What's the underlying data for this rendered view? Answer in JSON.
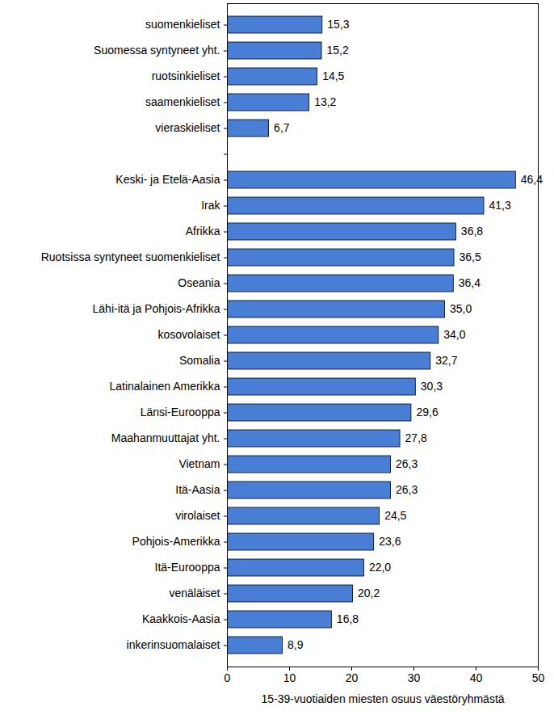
{
  "chart_data": {
    "type": "bar",
    "orientation": "horizontal",
    "x_label": "15-39-vuotiaiden miesten osuus väestöryhmästä",
    "categories": [
      "suomenkieliset",
      "Suomessa syntyneet yht.",
      "ruotsinkieliset",
      "saamenkieliset",
      "vieraskieliset",
      null,
      "Keski- ja Etelä-Aasia",
      "Irak",
      "Afrikka",
      "Ruotsissa syntyneet suomenkieliset",
      "Oseania",
      "Lähi-itä ja Pohjois-Afrikka",
      "kosovolaiset",
      "Somalia",
      "Latinalainen Amerikka",
      "Länsi-Eurooppa",
      "Maahanmuuttajat yht.",
      "Vietnam",
      "Itä-Aasia",
      "virolaiset",
      "Pohjois-Amerikka",
      "Itä-Eurooppa",
      "venäläiset",
      "Kaakkois-Aasia",
      "inkerinsuomalaiset"
    ],
    "values": [
      15.3,
      15.2,
      14.5,
      13.2,
      6.7,
      null,
      46.4,
      41.3,
      36.8,
      36.5,
      36.4,
      35.0,
      34.0,
      32.7,
      30.3,
      29.6,
      27.8,
      26.3,
      26.3,
      24.5,
      23.6,
      22.0,
      20.2,
      16.8,
      8.9
    ],
    "value_labels": [
      "15,3",
      "15,2",
      "14,5",
      "13,2",
      "6,7",
      null,
      "46,4",
      "41,3",
      "36,8",
      "36,5",
      "36,4",
      "35,0",
      "34,0",
      "32,7",
      "30,3",
      "29,6",
      "27,8",
      "26,3",
      "26,3",
      "24,5",
      "23,6",
      "22,0",
      "20,2",
      "16,8",
      "8,9"
    ],
    "color": "#4a7ed4",
    "xlim": [
      0,
      50
    ],
    "xticks": [
      0,
      10,
      20,
      30,
      40,
      50
    ],
    "data_labels": true,
    "grid": false
  }
}
